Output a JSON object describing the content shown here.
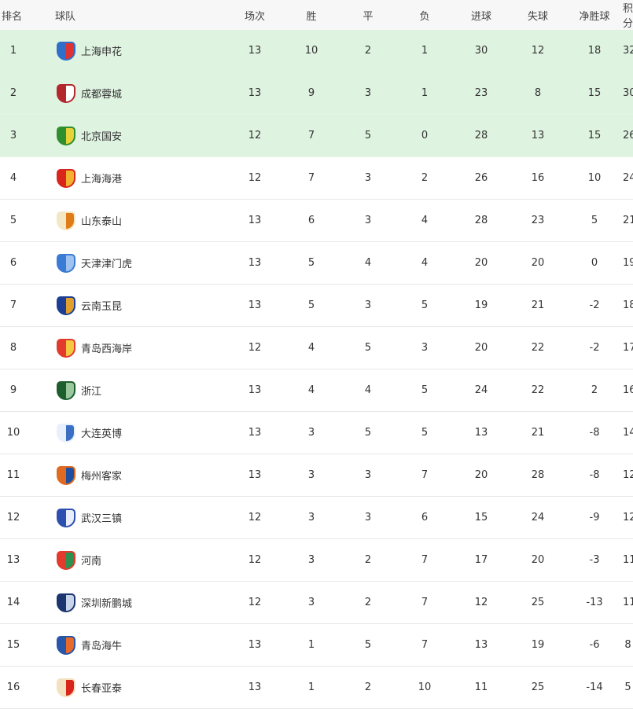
{
  "headers": [
    "排名",
    "球队",
    "场次",
    "胜",
    "平",
    "负",
    "进球",
    "失球",
    "净胜球",
    "积分"
  ],
  "highlight_color": "#dff3e1",
  "rows": [
    {
      "rank": "1",
      "team": "上海申花",
      "logo": "shanghai-shenhua-logo",
      "colors": [
        "#2f6fc9",
        "#d33"
      ],
      "p": "13",
      "w": "10",
      "d": "2",
      "l": "1",
      "gf": "30",
      "ga": "12",
      "gd": "18",
      "pts": "32"
    },
    {
      "rank": "2",
      "team": "成都蓉城",
      "logo": "chengdu-rongcheng-logo",
      "colors": [
        "#b3282d",
        "#fff"
      ],
      "p": "13",
      "w": "9",
      "d": "3",
      "l": "1",
      "gf": "23",
      "ga": "8",
      "gd": "15",
      "pts": "30"
    },
    {
      "rank": "3",
      "team": "北京国安",
      "logo": "beijing-guoan-logo",
      "colors": [
        "#2f8f2f",
        "#e8d23a"
      ],
      "p": "12",
      "w": "7",
      "d": "5",
      "l": "0",
      "gf": "28",
      "ga": "13",
      "gd": "15",
      "pts": "26"
    },
    {
      "rank": "4",
      "team": "上海海港",
      "logo": "shanghai-port-logo",
      "colors": [
        "#d9261c",
        "#f2b12e"
      ],
      "p": "12",
      "w": "7",
      "d": "3",
      "l": "2",
      "gf": "26",
      "ga": "16",
      "gd": "10",
      "pts": "24"
    },
    {
      "rank": "5",
      "team": "山东泰山",
      "logo": "shandong-taishan-logo",
      "colors": [
        "#f4e7c4",
        "#e07b1a"
      ],
      "p": "13",
      "w": "6",
      "d": "3",
      "l": "4",
      "gf": "28",
      "ga": "23",
      "gd": "5",
      "pts": "21"
    },
    {
      "rank": "6",
      "team": "天津津门虎",
      "logo": "tianjin-jinmen-tiger-logo",
      "colors": [
        "#3a7bd5",
        "#9fc3ef"
      ],
      "p": "13",
      "w": "5",
      "d": "4",
      "l": "4",
      "gf": "20",
      "ga": "20",
      "gd": "0",
      "pts": "19"
    },
    {
      "rank": "7",
      "team": "云南玉昆",
      "logo": "yunnan-yukun-logo",
      "colors": [
        "#1c3f94",
        "#e0a030"
      ],
      "p": "13",
      "w": "5",
      "d": "3",
      "l": "5",
      "gf": "19",
      "ga": "21",
      "gd": "-2",
      "pts": "18"
    },
    {
      "rank": "8",
      "team": "青岛西海岸",
      "logo": "qingdao-west-coast-logo",
      "colors": [
        "#e23b2e",
        "#f5c842"
      ],
      "p": "12",
      "w": "4",
      "d": "5",
      "l": "3",
      "gf": "20",
      "ga": "22",
      "gd": "-2",
      "pts": "17"
    },
    {
      "rank": "9",
      "team": "浙江",
      "logo": "zhejiang-logo",
      "colors": [
        "#1d5e2f",
        "#9bc79f"
      ],
      "p": "13",
      "w": "4",
      "d": "4",
      "l": "5",
      "gf": "24",
      "ga": "22",
      "gd": "2",
      "pts": "16"
    },
    {
      "rank": "10",
      "team": "大连英博",
      "logo": "dalian-yingbo-logo",
      "colors": [
        "#e8f0fb",
        "#3a6fc4"
      ],
      "p": "13",
      "w": "3",
      "d": "5",
      "l": "5",
      "gf": "13",
      "ga": "21",
      "gd": "-8",
      "pts": "14"
    },
    {
      "rank": "11",
      "team": "梅州客家",
      "logo": "meizhou-hakka-logo",
      "colors": [
        "#e06a1f",
        "#1f4fa0"
      ],
      "p": "13",
      "w": "3",
      "d": "3",
      "l": "7",
      "gf": "20",
      "ga": "28",
      "gd": "-8",
      "pts": "12"
    },
    {
      "rank": "12",
      "team": "武汉三镇",
      "logo": "wuhan-three-towns-logo",
      "colors": [
        "#2d4fb0",
        "#e8eefb"
      ],
      "p": "12",
      "w": "3",
      "d": "3",
      "l": "6",
      "gf": "15",
      "ga": "24",
      "gd": "-9",
      "pts": "12"
    },
    {
      "rank": "13",
      "team": "河南",
      "logo": "henan-logo",
      "colors": [
        "#e23b2e",
        "#2f8f4f"
      ],
      "p": "12",
      "w": "3",
      "d": "2",
      "l": "7",
      "gf": "17",
      "ga": "20",
      "gd": "-3",
      "pts": "11"
    },
    {
      "rank": "14",
      "team": "深圳新鹏城",
      "logo": "shenzhen-xinpengcheng-logo",
      "colors": [
        "#1c3570",
        "#c8d4e8"
      ],
      "p": "12",
      "w": "3",
      "d": "2",
      "l": "7",
      "gf": "12",
      "ga": "25",
      "gd": "-13",
      "pts": "11"
    },
    {
      "rank": "15",
      "team": "青岛海牛",
      "logo": "qingdao-hainiu-logo",
      "colors": [
        "#2856a8",
        "#e86a2a"
      ],
      "p": "13",
      "w": "1",
      "d": "5",
      "l": "7",
      "gf": "13",
      "ga": "19",
      "gd": "-6",
      "pts": "8"
    },
    {
      "rank": "16",
      "team": "长春亚泰",
      "logo": "changchun-yatai-logo",
      "colors": [
        "#f4e1c0",
        "#d9261c"
      ],
      "p": "13",
      "w": "1",
      "d": "2",
      "l": "10",
      "gf": "11",
      "ga": "25",
      "gd": "-14",
      "pts": "5"
    }
  ]
}
